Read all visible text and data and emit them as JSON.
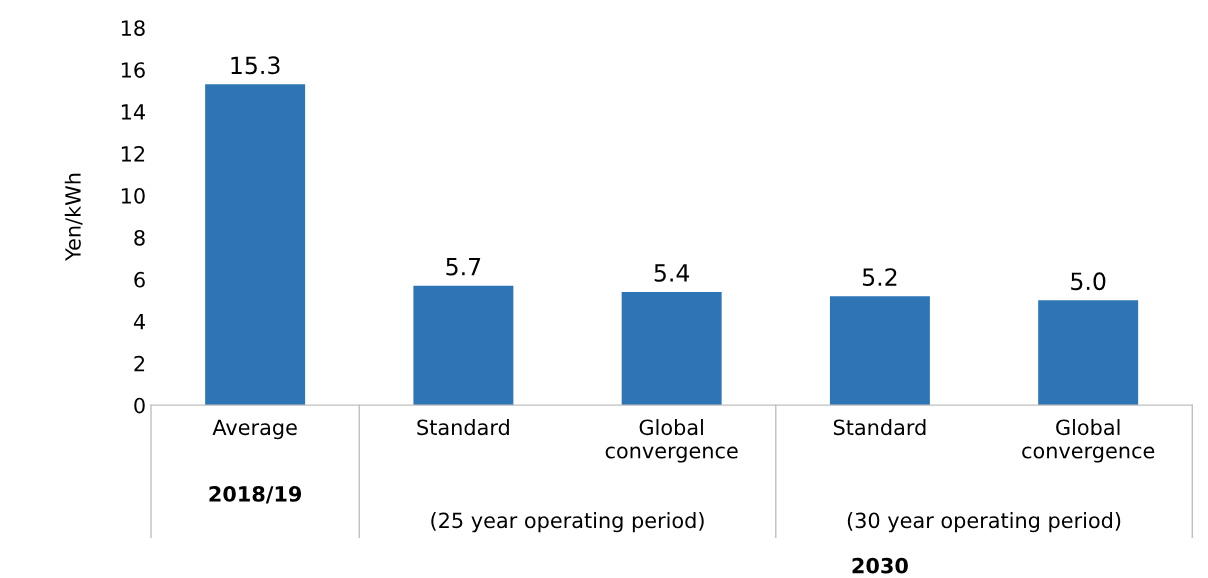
{
  "chart_data": {
    "type": "bar",
    "ylabel": "Yen/kWh",
    "categories": [
      "Average",
      "Standard",
      "Global\nconvergence",
      "Standard",
      "Global\nconvergence"
    ],
    "values": [
      15.3,
      5.7,
      5.4,
      5.2,
      5.0
    ],
    "value_labels": [
      "15.3",
      "5.7",
      "5.4",
      "5.2",
      "5.0"
    ],
    "color": "#2e75b6",
    "ylim": [
      0,
      18
    ],
    "yticks": [
      0,
      2,
      4,
      6,
      8,
      10,
      12,
      14,
      16,
      18
    ],
    "annotations": [
      "2018/19",
      "(25 year operating period)",
      "(30 year operating period)",
      "2030"
    ]
  }
}
